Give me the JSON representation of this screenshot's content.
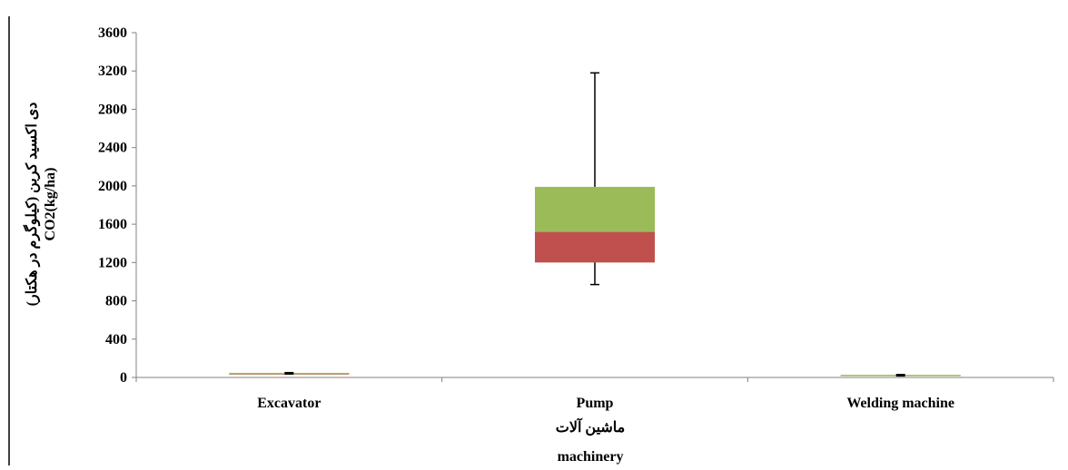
{
  "chart_data": {
    "type": "box",
    "categories": [
      "Excavator",
      "Pump",
      "Welding machine"
    ],
    "boxes": [
      {
        "category": "Excavator",
        "min": 30,
        "q1": 30,
        "median": 42,
        "q3": 48,
        "max": 48
      },
      {
        "category": "Pump",
        "min": 970,
        "q1": 1200,
        "median": 1520,
        "q3": 1990,
        "max": 3180
      },
      {
        "category": "Welding machine",
        "min": 20,
        "q1": 20,
        "median": 25,
        "q3": 28,
        "max": 28
      }
    ],
    "ylim": [
      0,
      3600
    ],
    "yticks": [
      "0",
      "400",
      "800",
      "1200",
      "1600",
      "2000",
      "2400",
      "2800",
      "3200",
      "3600"
    ],
    "ylabel_fa": "دی اکسید کربن (کیلوگرم در هکتار)",
    "ylabel": "CO2(kg/ha)",
    "xlabel_fa": "ماشین آلات",
    "xlabel": "machinery",
    "colors": {
      "lower_box": "#C0504D",
      "upper_box": "#9BBB59",
      "axis": "#808080",
      "whisker": "#000000"
    },
    "grid": false,
    "legend": "none"
  }
}
